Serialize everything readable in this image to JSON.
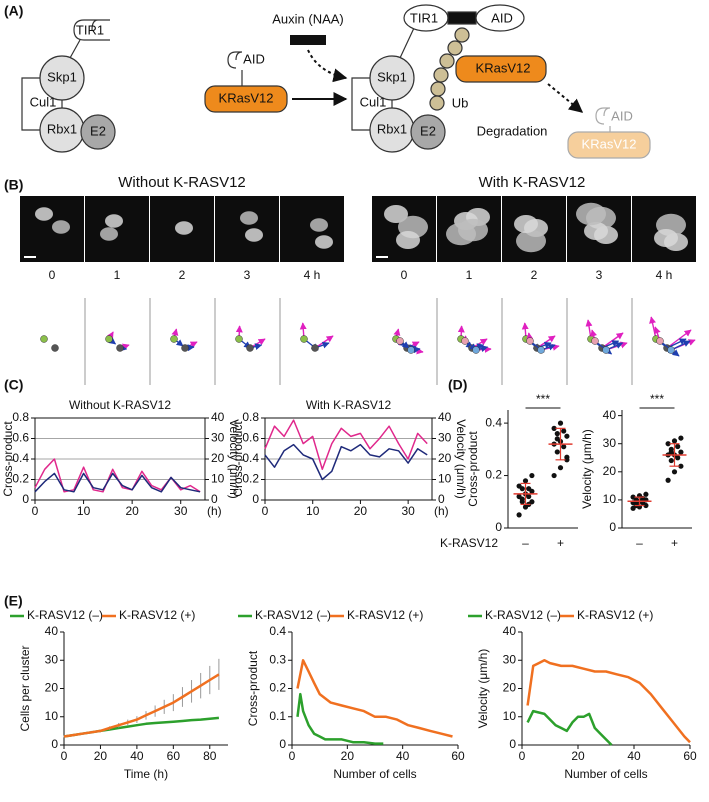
{
  "diagram": {
    "label": "(A)",
    "complex_before": {
      "tir1": "TIR1",
      "skp1": "Skp1",
      "cul1": "Cul1",
      "rbx1": "Rbx1",
      "e2": "E2"
    },
    "substrate": {
      "aid": "AID",
      "kras": "KRasV12"
    },
    "auxin": "Auxin (NAA)",
    "complex_after": {
      "tir1": "TIR1",
      "aid": "AID",
      "skp1": "Skp1",
      "kras": "KRasV12",
      "cul1": "Cul1",
      "ub": "Ub",
      "rbx1": "Rbx1",
      "e2": "E2"
    },
    "degradation": "Degradation",
    "degraded": {
      "aid": "AID",
      "kras": "KRasV12"
    }
  },
  "panel_b": {
    "label": "(B)",
    "titles": [
      "Without K-RASV12",
      "With K-RASV12"
    ],
    "times": [
      "0",
      "1",
      "2",
      "3",
      "4 h"
    ]
  },
  "panel_labels": {
    "c": "(C)",
    "d": "(D)",
    "e": "(E)"
  },
  "chart_data": [
    {
      "type": "line",
      "title": "Without K-RASV12",
      "ylabel": "Cross-product",
      "y2label": "Velocity (μm/h)",
      "xlabel": "(h)",
      "x": [
        0,
        2,
        4,
        6,
        8,
        10,
        12,
        14,
        16,
        18,
        20,
        22,
        24,
        26,
        28,
        30,
        32,
        34
      ],
      "xlim": [
        0,
        35
      ],
      "xticks": [
        0,
        10,
        20,
        30
      ],
      "ylim": [
        0,
        0.8
      ],
      "yticks": [
        0,
        0.2,
        0.4,
        0.6,
        0.8
      ],
      "y2lim": [
        0,
        40
      ],
      "y2ticks": [
        0,
        10,
        20,
        30,
        40
      ],
      "grid": true,
      "series": [
        {
          "color": "#e0288c",
          "values": [
            0.12,
            0.3,
            0.4,
            0.08,
            0.1,
            0.32,
            0.1,
            0.08,
            0.3,
            0.12,
            0.1,
            0.28,
            0.14,
            0.1,
            0.22,
            0.1,
            0.14,
            0.08
          ]
        },
        {
          "color": "#1f2a7a",
          "axis": "y2",
          "values": [
            4,
            9,
            13,
            5,
            4,
            13,
            6,
            5,
            13,
            7,
            5,
            12,
            6,
            4,
            11,
            6,
            5,
            4
          ]
        }
      ]
    },
    {
      "type": "line",
      "title": "With K-RASV12",
      "ylabel": "Cross-product",
      "y2label": "Velocity (μm/h)",
      "xlabel": "(h)",
      "x": [
        0,
        2,
        4,
        6,
        8,
        10,
        12,
        14,
        16,
        18,
        20,
        22,
        24,
        26,
        28,
        30,
        32,
        34
      ],
      "xlim": [
        0,
        35
      ],
      "xticks": [
        0,
        10,
        20,
        30
      ],
      "ylim": [
        0,
        0.8
      ],
      "yticks": [
        0,
        0.2,
        0.4,
        0.6,
        0.8
      ],
      "y2lim": [
        0,
        40
      ],
      "y2ticks": [
        0,
        10,
        20,
        30,
        40
      ],
      "grid": true,
      "series": [
        {
          "color": "#e0288c",
          "values": [
            0.5,
            0.72,
            0.62,
            0.78,
            0.55,
            0.62,
            0.3,
            0.55,
            0.7,
            0.62,
            0.65,
            0.5,
            0.6,
            0.72,
            0.55,
            0.4,
            0.65,
            0.55
          ]
        },
        {
          "color": "#1f2a7a",
          "axis": "y2",
          "values": [
            22,
            16,
            24,
            27,
            22,
            20,
            10,
            14,
            26,
            24,
            27,
            22,
            21,
            25,
            24,
            18,
            25,
            22
          ]
        }
      ]
    },
    {
      "type": "strip",
      "ylabel": "Cross-product",
      "xlabel": "K-RASV12",
      "annotation": "***",
      "categories": [
        "–",
        "+"
      ],
      "ylim": [
        0,
        0.45
      ],
      "yticks": [
        0,
        0.2,
        0.4
      ],
      "color": "#111111",
      "stat_color": "#e03c31",
      "groups": [
        {
          "values": [
            0.05,
            0.08,
            0.1,
            0.11,
            0.12,
            0.12,
            0.13,
            0.14,
            0.15,
            0.15,
            0.16,
            0.18,
            0.2,
            0.1,
            0.09
          ],
          "mean": 0.13,
          "sd": 0.04
        },
        {
          "values": [
            0.2,
            0.23,
            0.27,
            0.29,
            0.31,
            0.32,
            0.33,
            0.35,
            0.36,
            0.37,
            0.38,
            0.4,
            0.26,
            0.34
          ],
          "mean": 0.32,
          "sd": 0.06
        }
      ]
    },
    {
      "type": "strip",
      "ylabel": "Velocity (μm/h)",
      "annotation": "***",
      "categories": [
        "–",
        "+"
      ],
      "ylim": [
        0,
        42
      ],
      "yticks": [
        0,
        10,
        20,
        30,
        40
      ],
      "color": "#111111",
      "stat_color": "#e03c31",
      "groups": [
        {
          "values": [
            7,
            7.5,
            8,
            8.5,
            9,
            9,
            9.5,
            10,
            10,
            10.5,
            11,
            11.5,
            12,
            8,
            9.5
          ],
          "mean": 9.5,
          "sd": 1.5
        },
        {
          "values": [
            17,
            20,
            22,
            24,
            25,
            26,
            26,
            27,
            28,
            29,
            30,
            31,
            32,
            27
          ],
          "mean": 26,
          "sd": 4
        }
      ]
    },
    {
      "type": "line",
      "ylabel": "Cells per cluster",
      "xlabel": "Time (h)",
      "legend": "top",
      "x": [
        0,
        5,
        10,
        15,
        20,
        25,
        30,
        35,
        40,
        45,
        50,
        55,
        60,
        65,
        70,
        75,
        80,
        85
      ],
      "xlim": [
        0,
        90
      ],
      "xticks": [
        0,
        20,
        40,
        60,
        80
      ],
      "ylim": [
        0,
        40
      ],
      "yticks": [
        0,
        10,
        20,
        30,
        40
      ],
      "series": [
        {
          "name": "K-RASV12 (–)",
          "color": "#2ca02c",
          "values": [
            3,
            3.5,
            4,
            4.5,
            5,
            5.5,
            6,
            6.5,
            7,
            7.5,
            7.8,
            8,
            8.2,
            8.5,
            8.8,
            9,
            9.3,
            9.6
          ]
        },
        {
          "name": "K-RASV12 (+)",
          "color": "#f07020",
          "values": [
            3,
            3.5,
            4,
            4.5,
            5,
            6,
            7,
            8,
            9,
            10.5,
            12,
            13.5,
            15,
            17,
            19,
            21,
            23,
            25
          ],
          "errors": [
            0.3,
            0.3,
            0.4,
            0.5,
            0.5,
            0.6,
            0.8,
            1,
            1.2,
            1.5,
            2,
            2.5,
            3,
            3.5,
            4,
            4.5,
            5,
            5.5
          ]
        }
      ]
    },
    {
      "type": "line",
      "ylabel": "Cross-product",
      "xlabel": "Number of cells",
      "legend": "top",
      "xlim": [
        0,
        60
      ],
      "xticks": [
        0,
        20,
        40,
        60
      ],
      "ylim": [
        0,
        0.4
      ],
      "yticks": [
        0,
        0.1,
        0.2,
        0.3,
        0.4
      ],
      "series": [
        {
          "name": "K-RASV12 (–)",
          "color": "#2ca02c",
          "x": [
            2,
            3,
            4,
            6,
            8,
            10,
            12,
            14,
            18,
            22,
            26,
            30,
            33
          ],
          "values": [
            0.1,
            0.18,
            0.12,
            0.07,
            0.04,
            0.03,
            0.02,
            0.02,
            0.02,
            0.01,
            0.01,
            0.005,
            0.005
          ]
        },
        {
          "name": "K-RASV12 (+)",
          "color": "#f07020",
          "x": [
            2,
            4,
            6,
            8,
            10,
            14,
            18,
            22,
            26,
            30,
            34,
            38,
            42,
            46,
            50,
            54,
            58
          ],
          "values": [
            0.2,
            0.3,
            0.26,
            0.22,
            0.18,
            0.15,
            0.14,
            0.13,
            0.12,
            0.1,
            0.1,
            0.09,
            0.07,
            0.06,
            0.05,
            0.04,
            0.03
          ]
        }
      ]
    },
    {
      "type": "line",
      "ylabel": "Velocity (μm/h)",
      "xlabel": "Number of cells",
      "legend": "top",
      "xlim": [
        0,
        60
      ],
      "xticks": [
        0,
        20,
        40,
        60
      ],
      "ylim": [
        0,
        40
      ],
      "yticks": [
        0,
        10,
        20,
        30,
        40
      ],
      "series": [
        {
          "name": "K-RASV12 (–)",
          "color": "#2ca02c",
          "x": [
            2,
            4,
            8,
            12,
            14,
            16,
            18,
            20,
            22,
            24,
            26,
            28,
            30,
            32
          ],
          "values": [
            8,
            12,
            11,
            7,
            6,
            5,
            8,
            10,
            10,
            11,
            6,
            4,
            2,
            0
          ]
        },
        {
          "name": "K-RASV12 (+)",
          "color": "#f07020",
          "x": [
            2,
            4,
            6,
            8,
            10,
            14,
            18,
            22,
            26,
            30,
            34,
            38,
            42,
            46,
            50,
            54,
            58,
            60
          ],
          "values": [
            14,
            28,
            29,
            30,
            29,
            28,
            28,
            27,
            26,
            26,
            25,
            24,
            22,
            18,
            13,
            8,
            3,
            1
          ]
        }
      ]
    }
  ]
}
